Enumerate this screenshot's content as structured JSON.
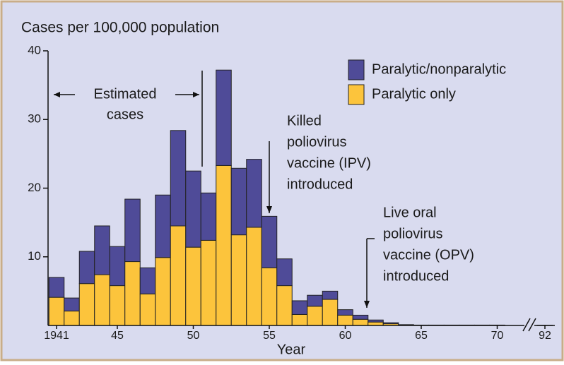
{
  "chart_data": {
    "type": "stacked-bar",
    "y_label": "Cases per 100,000 population",
    "x_label": "Year",
    "categories": [
      "1941",
      null,
      null,
      null,
      "45",
      null,
      null,
      null,
      null,
      "50",
      null,
      null,
      null,
      null,
      "55",
      null,
      null,
      null,
      null,
      "60",
      null,
      null,
      null,
      null,
      "65",
      null,
      null,
      null,
      null,
      "70",
      "92"
    ],
    "series": [
      {
        "name": "Paralytic only",
        "color": "#fcc43c",
        "values": [
          4.1,
          2.1,
          6.1,
          7.4,
          5.8,
          9.3,
          4.6,
          9.9,
          14.5,
          11.4,
          12.4,
          23.3,
          13.2,
          14.3,
          8.4,
          5.8,
          1.6,
          2.8,
          3.8,
          1.5,
          0.9,
          0.5,
          0.25,
          0.07,
          0.03,
          0.03,
          0.03,
          0.03,
          0.03,
          0.03,
          0.02
        ]
      },
      {
        "name": "Paralytic/nonparalytic",
        "color": "#4f4b98",
        "values": [
          2.9,
          1.9,
          4.7,
          7.1,
          5.7,
          9.1,
          3.8,
          9.1,
          13.9,
          11.1,
          6.9,
          13.9,
          9.7,
          9.9,
          7.5,
          3.9,
          2.0,
          1.6,
          1.2,
          0.8,
          0.6,
          0.3,
          0.15,
          0.05,
          0.03,
          0.03,
          0.03,
          0.03,
          0.03,
          0.03,
          0.02
        ]
      }
    ],
    "ylim": [
      0,
      40
    ],
    "yticks": [
      10,
      20,
      30,
      40
    ],
    "annotations": {
      "estimated": [
        "Estimated",
        "cases"
      ],
      "ipv": [
        "Killed",
        "poliovirus",
        "vaccine (IPV)",
        "introduced"
      ],
      "opv": [
        "Live oral",
        "poliovirus",
        "vaccine (OPV)",
        "introduced"
      ]
    }
  }
}
